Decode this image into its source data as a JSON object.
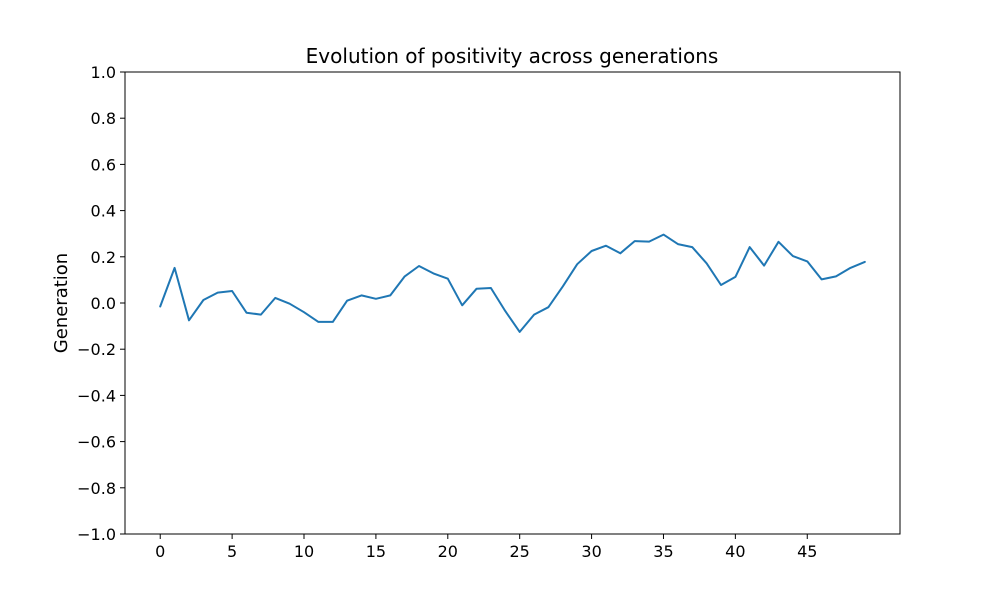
{
  "chart_data": {
    "type": "line",
    "title": "Evolution of positivity across generations",
    "xlabel": "",
    "ylabel": "Generation",
    "xlim": [
      -2.45,
      51.45
    ],
    "ylim": [
      -1.0,
      1.0
    ],
    "x_ticks": [
      0,
      5,
      10,
      15,
      20,
      25,
      30,
      35,
      40,
      45
    ],
    "y_ticks": [
      -1.0,
      -0.8,
      -0.6,
      -0.4,
      -0.2,
      0.0,
      0.2,
      0.4,
      0.6,
      0.8,
      1.0
    ],
    "x_tick_labels": [
      "0",
      "5",
      "10",
      "15",
      "20",
      "25",
      "30",
      "35",
      "40",
      "45"
    ],
    "y_tick_labels": [
      "−1.0",
      "−0.8",
      "−0.6",
      "−0.4",
      "−0.2",
      "0.0",
      "0.2",
      "0.4",
      "0.6",
      "0.8",
      "1.0"
    ],
    "grid": false,
    "line_color": "#1f77b4",
    "x": [
      0,
      1,
      2,
      3,
      4,
      5,
      6,
      7,
      8,
      9,
      10,
      11,
      12,
      13,
      14,
      15,
      16,
      17,
      18,
      19,
      20,
      21,
      22,
      23,
      24,
      25,
      26,
      27,
      28,
      29,
      30,
      31,
      32,
      33,
      34,
      35,
      36,
      37,
      38,
      39,
      40,
      41,
      42,
      43,
      44,
      45,
      46,
      47,
      48,
      49
    ],
    "series": [
      {
        "values": [
          -0.015,
          0.152,
          -0.075,
          0.013,
          0.045,
          0.052,
          -0.042,
          -0.05,
          0.022,
          -0.003,
          -0.04,
          -0.082,
          -0.082,
          0.01,
          0.033,
          0.018,
          0.033,
          0.115,
          0.16,
          0.128,
          0.105,
          -0.01,
          0.062,
          0.065,
          -0.035,
          -0.125,
          -0.05,
          -0.018,
          0.072,
          0.168,
          0.225,
          0.248,
          0.215,
          0.268,
          0.266,
          0.296,
          0.255,
          0.242,
          0.172,
          0.078,
          0.113,
          0.242,
          0.162,
          0.265,
          0.203,
          0.18,
          0.102,
          0.115,
          0.152,
          0.178
        ]
      }
    ]
  }
}
